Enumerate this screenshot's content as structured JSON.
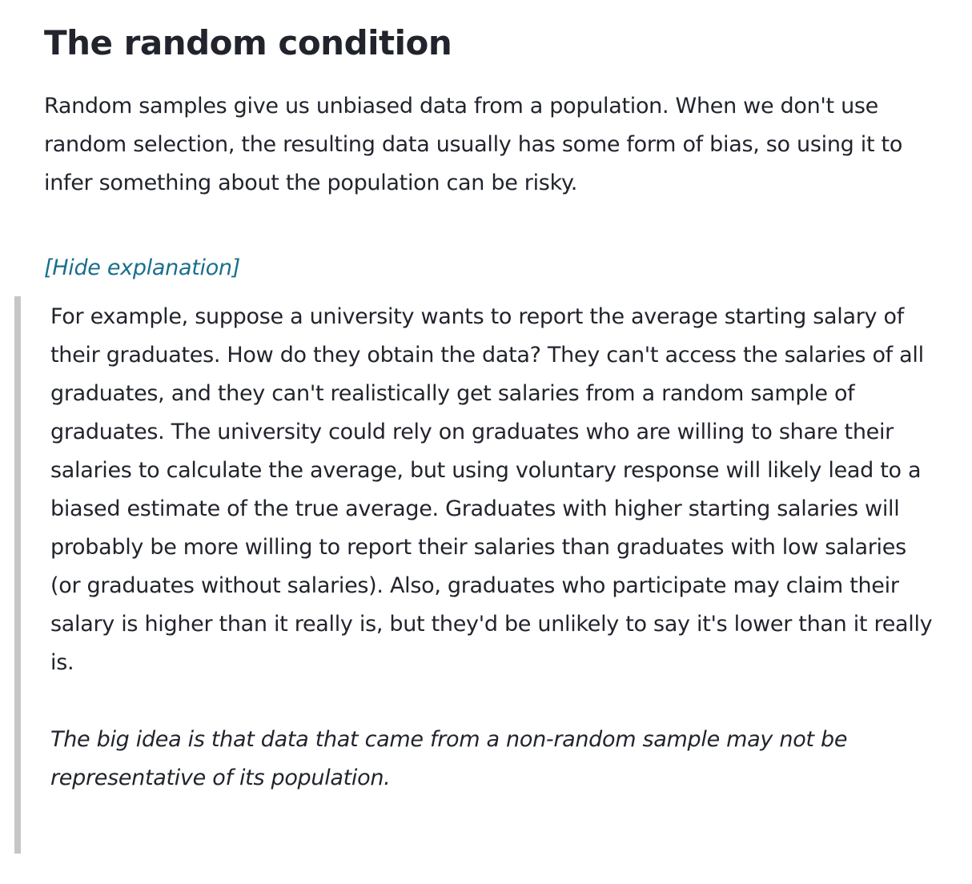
{
  "page": {
    "title": "The random condition",
    "intro": "Random samples give us unbiased data from a population. When we don't use random selection, the resulting data usually has some form of bias, so using it to infer something about the population can be risky."
  },
  "toggle": {
    "label": "[Hide explanation]"
  },
  "explanation": {
    "example": "For example, suppose a university wants to report the average starting salary of their graduates. How do they obtain the data? They can't access the salaries of all graduates, and they can't realistically get salaries from a random sample of graduates. The university could rely on graduates who are willing to share their salaries to calculate the average, but using voluntary response will likely lead to a biased estimate of the true average. Graduates with higher starting salaries will probably be more willing to report their salaries than graduates with low salaries (or graduates without salaries). Also, graduates who participate may claim their salary is higher than it really is, but they'd be unlikely to say it's lower than it really is.",
    "big_idea": "The big idea is that data that came from a non-random sample may not be representative of its population."
  },
  "colors": {
    "text": "#21242c",
    "link": "#1a6f8c",
    "quote_border": "#c6c6c6",
    "background": "#ffffff"
  }
}
